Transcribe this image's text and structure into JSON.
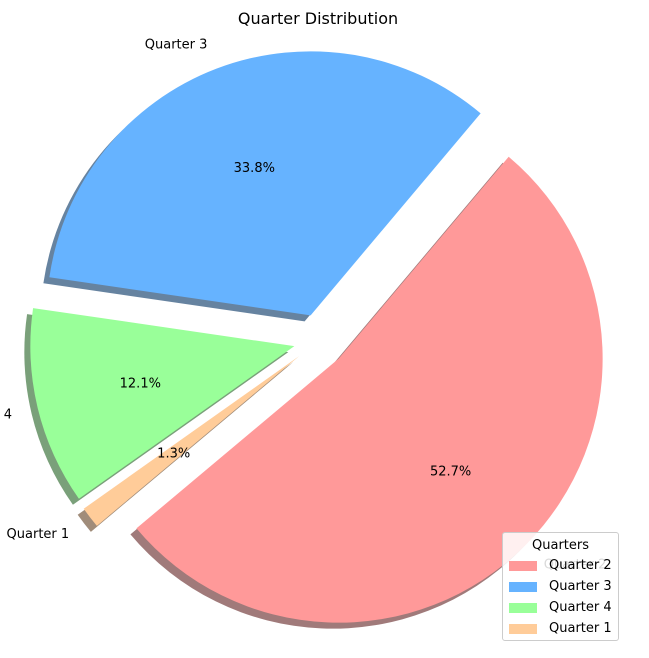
{
  "chart_data": {
    "type": "pie",
    "title": "Quarter Distribution",
    "slices": [
      {
        "label": "Quarter 2",
        "value": 52.7,
        "pct_label": "52.7%",
        "color": "#ff9999",
        "explode": true
      },
      {
        "label": "Quarter 3",
        "value": 33.8,
        "pct_label": "33.8%",
        "color": "#66b3ff",
        "explode": true
      },
      {
        "label": "Quarter 4",
        "value": 12.1,
        "pct_label": "12.1%",
        "color": "#99ff99",
        "explode": true
      },
      {
        "label": "Quarter 1",
        "value": 1.3,
        "pct_label": "1.3%",
        "color": "#ffcc99",
        "explode": true
      }
    ],
    "shadow": true,
    "legend": {
      "title": "Quarters",
      "placement": "lower-right",
      "entries": [
        "Quarter 2",
        "Quarter 3",
        "Quarter 4",
        "Quarter 1"
      ]
    }
  }
}
